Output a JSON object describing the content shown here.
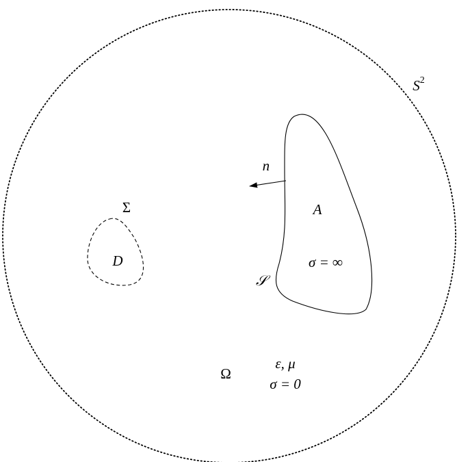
{
  "labels": {
    "sphere": {
      "base": "S",
      "sup": "2"
    },
    "normal": "n⃗",
    "sigma_boundary": "Σ",
    "defect": "D",
    "conductor": "A",
    "conductivity_inf": "σ = ∞",
    "surface": "𝒮",
    "domain": "Ω",
    "params": "ε, μ",
    "conductivity_zero": "σ = 0"
  }
}
